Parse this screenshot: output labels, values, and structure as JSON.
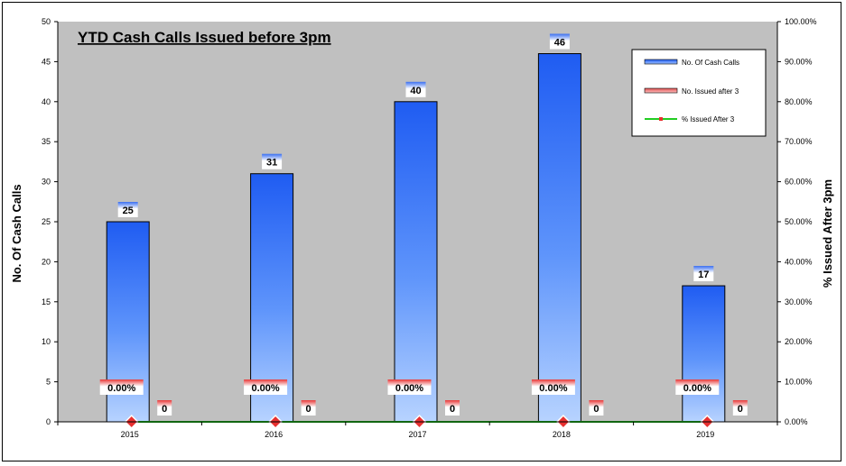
{
  "chart_data": {
    "type": "bar",
    "title": "YTD Cash Calls Issued before 3pm",
    "categories": [
      "2015",
      "2016",
      "2017",
      "2018",
      "2019"
    ],
    "series": [
      {
        "name": "No. Of Cash Calls",
        "axis": "left",
        "kind": "bar",
        "values": [
          25,
          31,
          40,
          46,
          17
        ],
        "color": "#2f64f0"
      },
      {
        "name": "No. Issued after 3",
        "axis": "left",
        "kind": "bar",
        "values": [
          0,
          0,
          0,
          0,
          0
        ],
        "color": "#e05050"
      },
      {
        "name": "% Issued After 3",
        "axis": "right",
        "kind": "line",
        "values": [
          0,
          0,
          0,
          0,
          0
        ],
        "color": "#22cc22",
        "marker_color": "#e83030"
      }
    ],
    "pct_labels": [
      "0.00%",
      "0.00%",
      "0.00%",
      "0.00%",
      "0.00%"
    ],
    "ylabel": "No. Of Cash Calls",
    "y2label": "% Issued  After 3pm",
    "ylim": [
      0,
      50
    ],
    "y2lim": [
      0,
      100
    ],
    "yticks": [
      "0",
      "5",
      "10",
      "15",
      "20",
      "25",
      "30",
      "35",
      "40",
      "45",
      "50"
    ],
    "y2ticks": [
      "0.00%",
      "10.00%",
      "20.00%",
      "30.00%",
      "40.00%",
      "50.00%",
      "60.00%",
      "70.00%",
      "80.00%",
      "90.00%",
      "100.00%"
    ],
    "plot_background": "#c0c0c0",
    "legend_position": "top-right",
    "grid": false
  }
}
